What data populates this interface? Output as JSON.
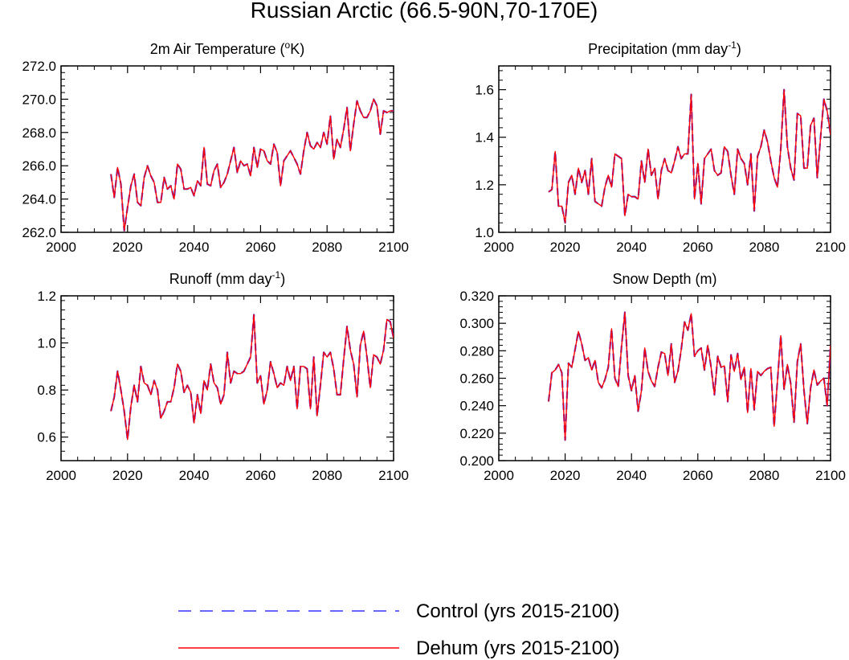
{
  "figure_title": "Russian Arctic (66.5-90N,70-170E)",
  "colors": {
    "control": "#3333ff",
    "dehum": "#ff0000",
    "axis": "#000000"
  },
  "legend": {
    "control_label": "Control (yrs 2015-2100)",
    "dehum_label": "Dehum (yrs 2015-2100)"
  },
  "chart_data": [
    {
      "type": "line",
      "title_main": "2m Air Temperature (",
      "title_sup": "o",
      "title_end": "K)",
      "xlim": [
        2000,
        2100
      ],
      "ylim": [
        262.0,
        272.0
      ],
      "x_ticks": [
        2000,
        2020,
        2040,
        2060,
        2080,
        2100
      ],
      "x_tick_labels": [
        "2000",
        "2020",
        "2040",
        "2060",
        "2080",
        "2100"
      ],
      "y_ticks": [
        262.0,
        264.0,
        266.0,
        268.0,
        270.0,
        272.0
      ],
      "y_tick_labels": [
        "262.0",
        "264.0",
        "266.0",
        "268.0",
        "270.0",
        "272.0"
      ],
      "x_start": 2015,
      "series": [
        {
          "name": "Control (yrs 2015-2100)",
          "style": "dashed",
          "values": [
            265.5,
            264.1,
            265.9,
            264.9,
            262.1,
            263.5,
            264.8,
            265.5,
            263.8,
            263.6,
            265.3,
            266.0,
            265.4,
            265.0,
            263.8,
            263.8,
            265.3,
            264.6,
            264.8,
            264.0,
            266.1,
            265.8,
            264.6,
            264.6,
            264.7,
            264.2,
            265.1,
            264.8,
            267.1,
            264.9,
            264.8,
            265.7,
            266.1,
            264.7,
            265.0,
            265.5,
            266.3,
            267.1,
            265.6,
            266.3,
            266.0,
            266.1,
            265.4,
            267.1,
            265.9,
            267.0,
            266.9,
            266.3,
            266.1,
            267.3,
            266.8,
            264.8,
            266.3,
            266.6,
            266.9,
            266.5,
            266.1,
            265.5,
            266.9,
            268.0,
            267.2,
            267.0,
            267.4,
            267.1,
            268.0,
            267.3,
            269.0,
            266.4,
            267.6,
            267.1,
            268.2,
            269.5,
            266.9,
            268.5,
            269.9,
            269.3,
            268.9,
            268.9,
            269.3,
            270.0,
            269.6,
            267.9,
            269.3,
            269.2,
            269.3,
            269.3
          ]
        },
        {
          "name": "Dehum (yrs 2015-2100)",
          "style": "solid",
          "values": [
            265.5,
            264.1,
            265.9,
            264.9,
            262.1,
            263.5,
            264.8,
            265.5,
            263.8,
            263.6,
            265.3,
            266.0,
            265.4,
            265.0,
            263.8,
            263.8,
            265.3,
            264.6,
            264.8,
            264.0,
            266.1,
            265.8,
            264.6,
            264.6,
            264.7,
            264.2,
            265.1,
            264.8,
            267.1,
            264.9,
            264.8,
            265.7,
            266.1,
            264.7,
            265.0,
            265.5,
            266.3,
            267.1,
            265.6,
            266.3,
            266.0,
            266.1,
            265.4,
            267.1,
            265.9,
            267.0,
            266.9,
            266.3,
            266.1,
            267.3,
            266.8,
            264.8,
            266.3,
            266.6,
            266.9,
            266.5,
            266.1,
            265.5,
            266.9,
            268.0,
            267.2,
            267.0,
            267.4,
            267.1,
            268.0,
            267.3,
            269.0,
            266.4,
            267.6,
            267.1,
            268.2,
            269.5,
            266.9,
            268.5,
            269.9,
            269.3,
            268.9,
            268.9,
            269.3,
            270.0,
            269.6,
            267.9,
            269.3,
            269.2,
            269.3,
            269.3
          ]
        }
      ]
    },
    {
      "type": "line",
      "title_main": "Precipitation (mm day",
      "title_sup": "-1",
      "title_end": ")",
      "xlim": [
        2000,
        2100
      ],
      "ylim": [
        1.0,
        1.7
      ],
      "x_ticks": [
        2000,
        2020,
        2040,
        2060,
        2080,
        2100
      ],
      "x_tick_labels": [
        "2000",
        "2020",
        "2040",
        "2060",
        "2080",
        "2100"
      ],
      "y_ticks": [
        1.0,
        1.2,
        1.4,
        1.6
      ],
      "y_tick_labels": [
        "1.0",
        "1.2",
        "1.4",
        "1.6"
      ],
      "x_start": 2015,
      "series": [
        {
          "name": "Control (yrs 2015-2100)",
          "style": "dashed",
          "values": [
            1.17,
            1.18,
            1.34,
            1.11,
            1.11,
            1.04,
            1.21,
            1.24,
            1.16,
            1.27,
            1.21,
            1.26,
            1.16,
            1.31,
            1.13,
            1.12,
            1.11,
            1.19,
            1.24,
            1.19,
            1.33,
            1.32,
            1.31,
            1.07,
            1.16,
            1.15,
            1.15,
            1.14,
            1.3,
            1.21,
            1.35,
            1.24,
            1.27,
            1.14,
            1.26,
            1.31,
            1.26,
            1.25,
            1.3,
            1.36,
            1.31,
            1.33,
            1.33,
            1.58,
            1.14,
            1.29,
            1.12,
            1.31,
            1.33,
            1.35,
            1.26,
            1.24,
            1.25,
            1.36,
            1.34,
            1.24,
            1.16,
            1.35,
            1.31,
            1.29,
            1.2,
            1.33,
            1.09,
            1.32,
            1.36,
            1.43,
            1.38,
            1.3,
            1.23,
            1.19,
            1.35,
            1.6,
            1.36,
            1.27,
            1.22,
            1.5,
            1.49,
            1.27,
            1.27,
            1.45,
            1.48,
            1.23,
            1.4,
            1.56,
            1.51,
            1.41
          ]
        },
        {
          "name": "Dehum (yrs 2015-2100)",
          "style": "solid",
          "values": [
            1.17,
            1.18,
            1.34,
            1.11,
            1.11,
            1.04,
            1.21,
            1.24,
            1.16,
            1.27,
            1.21,
            1.26,
            1.16,
            1.31,
            1.13,
            1.12,
            1.11,
            1.19,
            1.24,
            1.19,
            1.33,
            1.32,
            1.31,
            1.07,
            1.16,
            1.15,
            1.15,
            1.14,
            1.3,
            1.21,
            1.35,
            1.24,
            1.27,
            1.14,
            1.26,
            1.31,
            1.26,
            1.25,
            1.3,
            1.36,
            1.31,
            1.33,
            1.33,
            1.58,
            1.14,
            1.29,
            1.12,
            1.31,
            1.33,
            1.35,
            1.26,
            1.24,
            1.25,
            1.36,
            1.34,
            1.24,
            1.16,
            1.35,
            1.31,
            1.29,
            1.2,
            1.33,
            1.09,
            1.32,
            1.36,
            1.43,
            1.38,
            1.3,
            1.23,
            1.19,
            1.35,
            1.6,
            1.36,
            1.27,
            1.22,
            1.5,
            1.49,
            1.27,
            1.27,
            1.45,
            1.48,
            1.23,
            1.4,
            1.56,
            1.51,
            1.41
          ]
        }
      ]
    },
    {
      "type": "line",
      "title_main": "Runoff (mm day",
      "title_sup": "-1",
      "title_end": ")",
      "xlim": [
        2000,
        2100
      ],
      "ylim": [
        0.5,
        1.2
      ],
      "x_ticks": [
        2000,
        2020,
        2040,
        2060,
        2080,
        2100
      ],
      "x_tick_labels": [
        "2000",
        "2020",
        "2040",
        "2060",
        "2080",
        "2100"
      ],
      "y_ticks": [
        0.6,
        0.8,
        1.0,
        1.2
      ],
      "y_tick_labels": [
        "0.6",
        "0.8",
        "1.0",
        "1.2"
      ],
      "x_start": 2015,
      "series": [
        {
          "name": "Control (yrs 2015-2100)",
          "style": "dashed",
          "values": [
            0.71,
            0.77,
            0.88,
            0.8,
            0.71,
            0.59,
            0.73,
            0.82,
            0.75,
            0.9,
            0.83,
            0.82,
            0.78,
            0.84,
            0.8,
            0.68,
            0.71,
            0.75,
            0.75,
            0.81,
            0.91,
            0.88,
            0.79,
            0.82,
            0.79,
            0.66,
            0.78,
            0.7,
            0.84,
            0.8,
            0.91,
            0.83,
            0.81,
            0.74,
            0.78,
            0.96,
            0.83,
            0.88,
            0.87,
            0.87,
            0.88,
            0.91,
            0.94,
            1.12,
            0.83,
            0.86,
            0.74,
            0.8,
            0.92,
            0.87,
            0.81,
            0.83,
            0.82,
            0.9,
            0.84,
            0.9,
            0.72,
            0.9,
            0.9,
            0.89,
            0.72,
            0.94,
            0.69,
            0.82,
            0.96,
            0.94,
            0.96,
            0.89,
            0.78,
            0.78,
            0.93,
            1.07,
            0.97,
            0.91,
            0.77,
            0.99,
            1.05,
            0.94,
            0.81,
            0.95,
            0.94,
            0.91,
            0.97,
            1.1,
            1.09,
            1.02
          ]
        },
        {
          "name": "Dehum (yrs 2015-2100)",
          "style": "solid",
          "values": [
            0.71,
            0.77,
            0.88,
            0.8,
            0.71,
            0.59,
            0.73,
            0.82,
            0.75,
            0.9,
            0.83,
            0.82,
            0.78,
            0.84,
            0.8,
            0.68,
            0.71,
            0.75,
            0.75,
            0.81,
            0.91,
            0.88,
            0.79,
            0.82,
            0.79,
            0.66,
            0.78,
            0.7,
            0.84,
            0.8,
            0.91,
            0.83,
            0.81,
            0.74,
            0.78,
            0.96,
            0.83,
            0.88,
            0.87,
            0.87,
            0.88,
            0.91,
            0.94,
            1.12,
            0.83,
            0.86,
            0.74,
            0.8,
            0.92,
            0.87,
            0.81,
            0.83,
            0.82,
            0.9,
            0.84,
            0.9,
            0.72,
            0.9,
            0.9,
            0.89,
            0.72,
            0.94,
            0.69,
            0.82,
            0.96,
            0.94,
            0.96,
            0.89,
            0.78,
            0.78,
            0.93,
            1.07,
            0.97,
            0.91,
            0.77,
            0.99,
            1.05,
            0.94,
            0.81,
            0.95,
            0.94,
            0.91,
            0.97,
            1.1,
            1.09,
            1.02
          ]
        }
      ]
    },
    {
      "type": "line",
      "title_main": "Snow Depth (m)",
      "title_sup": "",
      "title_end": "",
      "xlim": [
        2000,
        2100
      ],
      "ylim": [
        0.2,
        0.32
      ],
      "x_ticks": [
        2000,
        2020,
        2040,
        2060,
        2080,
        2100
      ],
      "x_tick_labels": [
        "2000",
        "2020",
        "2040",
        "2060",
        "2080",
        "2100"
      ],
      "y_ticks": [
        0.2,
        0.22,
        0.24,
        0.26,
        0.28,
        0.3,
        0.32
      ],
      "y_tick_labels": [
        "0.200",
        "0.220",
        "0.240",
        "0.260",
        "0.280",
        "0.300",
        "0.320"
      ],
      "x_start": 2015,
      "series": [
        {
          "name": "Control (yrs 2015-2100)",
          "style": "dashed",
          "values": [
            0.243,
            0.264,
            0.266,
            0.27,
            0.264,
            0.215,
            0.271,
            0.268,
            0.281,
            0.294,
            0.285,
            0.273,
            0.275,
            0.266,
            0.273,
            0.257,
            0.253,
            0.259,
            0.268,
            0.296,
            0.26,
            0.254,
            0.283,
            0.308,
            0.262,
            0.251,
            0.262,
            0.236,
            0.251,
            0.282,
            0.265,
            0.258,
            0.254,
            0.268,
            0.279,
            0.278,
            0.262,
            0.285,
            0.257,
            0.265,
            0.281,
            0.301,
            0.295,
            0.307,
            0.276,
            0.28,
            0.282,
            0.266,
            0.284,
            0.268,
            0.248,
            0.276,
            0.268,
            0.269,
            0.243,
            0.277,
            0.265,
            0.278,
            0.259,
            0.268,
            0.235,
            0.267,
            0.237,
            0.265,
            0.262,
            0.265,
            0.267,
            0.268,
            0.225,
            0.258,
            0.291,
            0.252,
            0.27,
            0.256,
            0.228,
            0.272,
            0.285,
            0.251,
            0.227,
            0.253,
            0.266,
            0.255,
            0.258,
            0.26,
            0.24,
            0.284
          ]
        },
        {
          "name": "Dehum (yrs 2015-2100)",
          "style": "solid",
          "values": [
            0.243,
            0.264,
            0.266,
            0.27,
            0.264,
            0.215,
            0.271,
            0.268,
            0.281,
            0.294,
            0.285,
            0.273,
            0.275,
            0.266,
            0.273,
            0.257,
            0.253,
            0.259,
            0.268,
            0.296,
            0.26,
            0.254,
            0.283,
            0.308,
            0.262,
            0.251,
            0.262,
            0.236,
            0.251,
            0.282,
            0.265,
            0.258,
            0.254,
            0.268,
            0.279,
            0.278,
            0.262,
            0.285,
            0.257,
            0.265,
            0.281,
            0.301,
            0.295,
            0.307,
            0.276,
            0.28,
            0.282,
            0.266,
            0.284,
            0.268,
            0.248,
            0.276,
            0.268,
            0.269,
            0.243,
            0.277,
            0.265,
            0.278,
            0.259,
            0.268,
            0.235,
            0.267,
            0.237,
            0.265,
            0.262,
            0.265,
            0.267,
            0.268,
            0.225,
            0.258,
            0.291,
            0.252,
            0.27,
            0.256,
            0.228,
            0.272,
            0.285,
            0.251,
            0.227,
            0.253,
            0.266,
            0.255,
            0.258,
            0.26,
            0.24,
            0.284
          ]
        }
      ]
    }
  ]
}
